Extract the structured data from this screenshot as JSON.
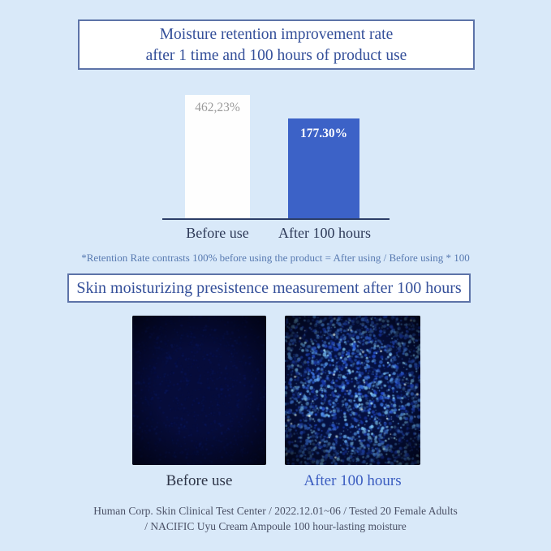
{
  "page": {
    "background": "#d9e9f9"
  },
  "header": {
    "title_line1": "Moisture retention improvement rate",
    "title_line2": "after 1 time and 100 hours of product use"
  },
  "chart_data": {
    "type": "bar",
    "title": "Moisture retention improvement rate after 1 time and 100 hours of product use",
    "categories": [
      "Before use",
      "After 100 hours"
    ],
    "values": [
      462.23,
      177.3
    ],
    "value_labels": [
      "462,23%",
      "177.30%"
    ],
    "unit": "%",
    "bar_colors": [
      "#ffffff",
      "#3c62c7"
    ],
    "axis_color": "#2c3e68",
    "legend": "none",
    "footnote": "*Retention Rate contrasts 100% before using the product = After using / Before using * 100"
  },
  "section2": {
    "title": "Skin moisturizing presistence measurement after 100 hours"
  },
  "micrographs": {
    "before": {
      "label": "Before use",
      "base_color": "#060c3a",
      "dot_colors": [
        "#0b1a6a",
        "#0e2278",
        "#071552"
      ],
      "bright_dots": false
    },
    "after": {
      "label": "After 100 hours",
      "base_color": "#051040",
      "dot_colors": [
        "#1b3cb4",
        "#2a57da",
        "#3f7ceb",
        "#5fa6f5",
        "#86d2ff"
      ],
      "sparkle_colors": [
        "#eaffff",
        "#9fe0ff"
      ],
      "bright_dots": true
    }
  },
  "footer": {
    "line1": "Human Corp. Skin Clinical Test Center / 2022.12.01~06 / Tested 20 Female Adults",
    "line2": "/ NACIFIC Uyu Cream Ampoule 100 hour-lasting moisture"
  }
}
